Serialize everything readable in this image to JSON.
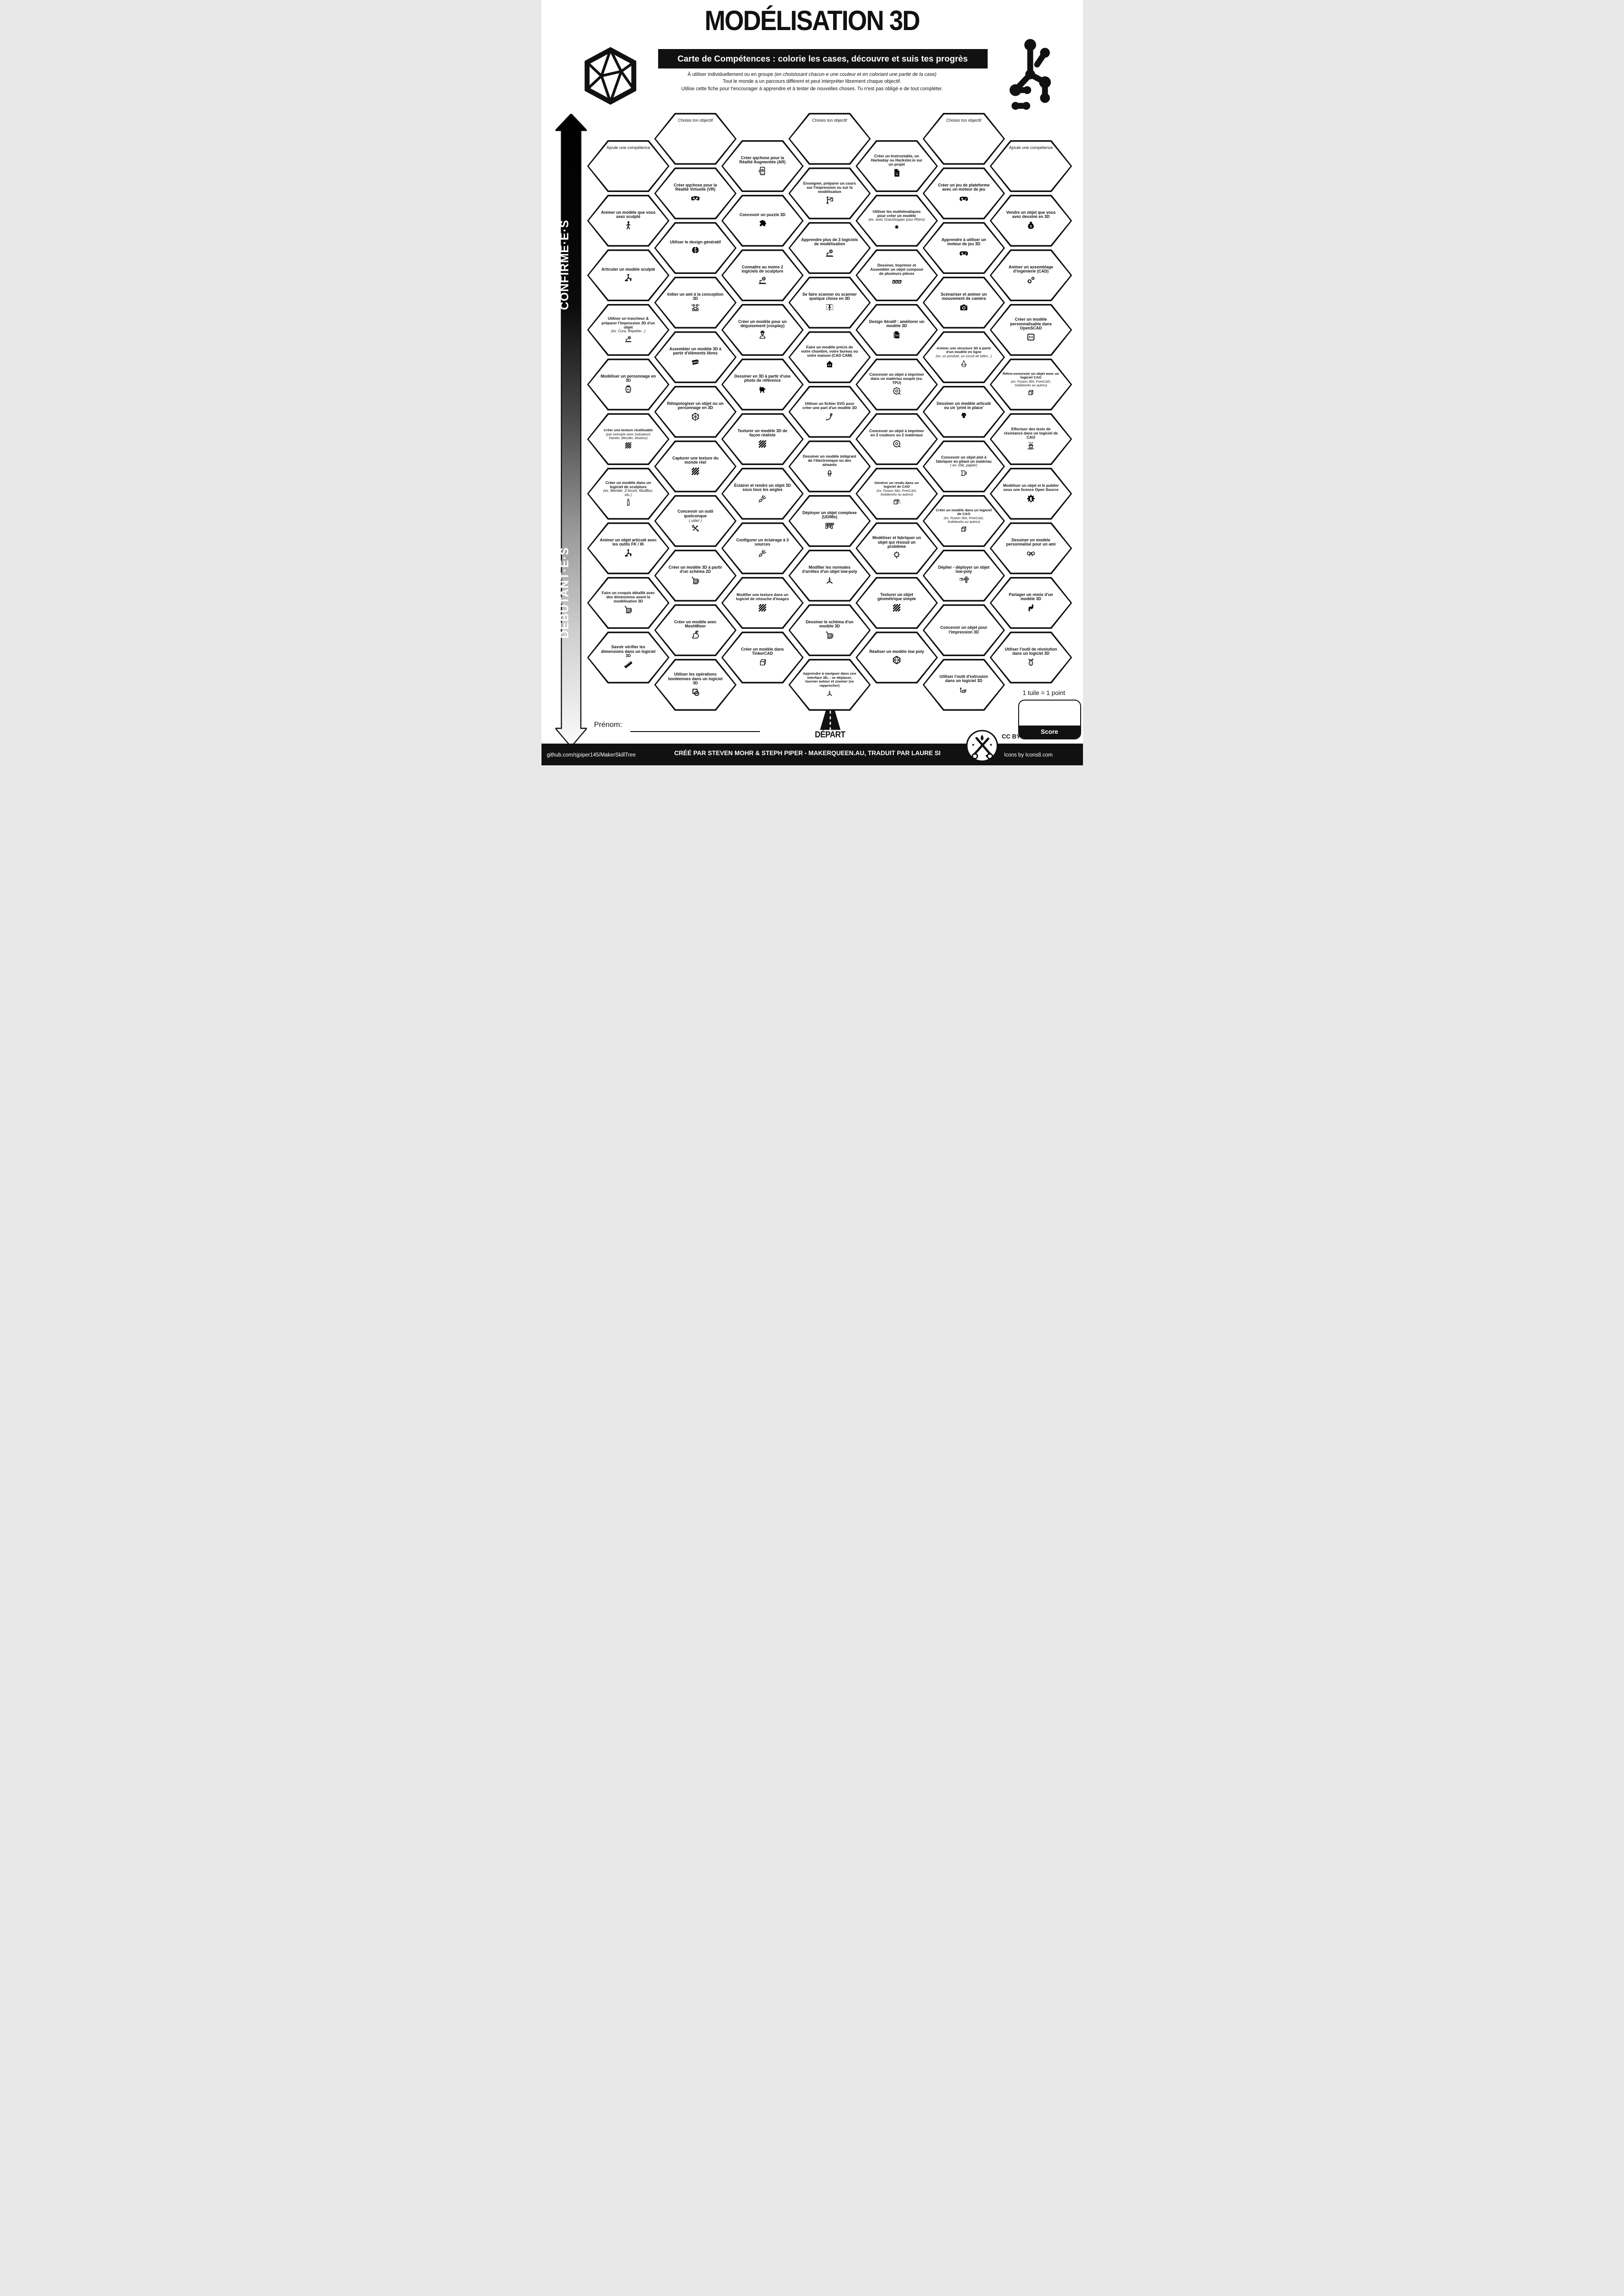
{
  "header": {
    "title": "MODÉLISATION 3D",
    "banner": "Carte de Compétences : colorie les cases, découvre et suis tes progrès",
    "intro_normal": "À utiliser individuellement ou en groupe ",
    "intro_italic": "(en choisissant chacun·e une couleur et en coloriant une partie de la case)",
    "intro_line2": "Tout le monde a un parcours différent et peut interpréter librement chaque objectif.",
    "intro_line3": "Utilise cette fiche pour t'encourager à apprendre et à tester de nouvelles choses. Tu n'est pas obligé·e de tout compléter."
  },
  "axis": {
    "advanced": "CONFIRMÉ·E·S",
    "beginner": "DÉBUTANT·E·S"
  },
  "start": {
    "label": "DÉPART"
  },
  "name_field": {
    "label": "Prénom:"
  },
  "score": {
    "hint": "1 tuile = 1 point",
    "label": "Score"
  },
  "footer": {
    "github": "github.com/sjpiper145/MakerSkillTree",
    "credit": "CRÉÉ PAR STEVEN MOHR & STEPH PIPER - MAKERQUEEN.AU, TRADUIT PAR LAURE SI",
    "license": "CC BY- NC - SA 4.0",
    "icons_credit": "Icons by Icons8.com"
  },
  "hexes": [
    {
      "col": 2,
      "row": 1,
      "label": "Choisis ton objectif",
      "icon": null,
      "label_top": true
    },
    {
      "col": 4,
      "row": 1,
      "label": "Choisis ton objectif",
      "icon": null,
      "label_top": true
    },
    {
      "col": 6,
      "row": 1,
      "label": "Choisis ton objectif",
      "icon": null,
      "label_top": true
    },
    {
      "col": 1,
      "row": 2,
      "label": "Ajoute une compétence",
      "icon": null,
      "label_top": true
    },
    {
      "col": 7,
      "row": 2,
      "label": "Ajoute une compétence",
      "icon": null,
      "label_top": true
    },
    {
      "col": 3,
      "row": 2,
      "label": "Créer qqchose pour la Réalité Augmentée (AR)",
      "icon": "ar"
    },
    {
      "col": 5,
      "row": 2,
      "label": "Créer un Instructable, un Hackaday ou Hackster.io sur un projet",
      "icon": "docsmile"
    },
    {
      "col": 2,
      "row": 3,
      "label": "Créer qqchose pour la Réalité Virtuelle (VR)",
      "icon": "vr"
    },
    {
      "col": 4,
      "row": 3,
      "label": "Enseigner, préparer un cours sur l'impression ou sur la modélisation",
      "icon": "teacher"
    },
    {
      "col": 6,
      "row": 3,
      "label": "Créer un jeu de plateforme avec un moteur de jeu",
      "icon": "gamepad"
    },
    {
      "col": 1,
      "row": 4,
      "label": "Animer un modèle que vous avez sculpté",
      "icon": "walk"
    },
    {
      "col": 3,
      "row": 4,
      "label": "Concevoir un puzzle 3D",
      "icon": "puzzle"
    },
    {
      "col": 5,
      "row": 4,
      "label": "Utiliser les mathématiques pour créer un modèle",
      "sub": "(ex. avec Grasshopper pour Rhino)",
      "icon": "snowflake"
    },
    {
      "col": 7,
      "row": 4,
      "label": "Vendre un objet que vous avez dessiné en 3D",
      "icon": "moneybag"
    },
    {
      "col": 2,
      "row": 5,
      "label": "Utiliser le design génératif",
      "icon": "brain"
    },
    {
      "col": 4,
      "row": 5,
      "label": "Apprendre plus de 3 logiciels de modélisation",
      "icon": "laptopGear"
    },
    {
      "col": 6,
      "row": 5,
      "label": "Apprendre à utiliser un moteur de jeu 3D",
      "icon": "gamepad"
    },
    {
      "col": 1,
      "row": 6,
      "label": "Articuler un modèle sculpté",
      "icon": "armature"
    },
    {
      "col": 3,
      "row": 6,
      "label": "Connaître au moins 2 logiciels de sculpture",
      "icon": "laptopGear"
    },
    {
      "col": 5,
      "row": 6,
      "label": "Dessiner, Imprimer et Assembler un objet composé de plusieurs pièces",
      "icon": "cubes"
    },
    {
      "col": 7,
      "row": 6,
      "label": "Animer un assemblage d'ingénierie (CAD)",
      "icon": "gears"
    },
    {
      "col": 2,
      "row": 7,
      "label": "Initier un ami à la conception 3D",
      "icon": "friends"
    },
    {
      "col": 4,
      "row": 7,
      "label": "Se faire scanner ou scanner quelque chose en 3D",
      "icon": "scan"
    },
    {
      "col": 6,
      "row": 7,
      "label": "Scénariser et animer un mouvement de caméra",
      "icon": "camera"
    },
    {
      "col": 1,
      "row": 8,
      "label": "Utiliser un trancheur & préparer l'impression 3D d'un objet",
      "sub": "(ex. Cura, Repetier...)",
      "icon": "laptopGear"
    },
    {
      "col": 3,
      "row": 8,
      "label": "Créer un modèle pour un déguisement (cosplay)",
      "icon": "cosplay"
    },
    {
      "col": 5,
      "row": 8,
      "label": "Design itératif : améliorer un modèle 3D",
      "icon": "v2"
    },
    {
      "col": 7,
      "row": 8,
      "label": "Créer un modèle personnalisable dans OpenSCAD",
      "icon": "code"
    },
    {
      "col": 2,
      "row": 9,
      "label": "Assembler un modèle 3D à partir d'éléments libres",
      "icon": "free"
    },
    {
      "col": 4,
      "row": 9,
      "label": "Faire un modèle précis de votre chambre, votre bureau ou votre maison (CAD CAM)",
      "icon": "house"
    },
    {
      "col": 6,
      "row": 9,
      "label": "Animer une structure 3D à partir d'un modèle en ligne",
      "sub": "(ex. un pendule, un circuit de billes...)",
      "icon": "pendulum"
    },
    {
      "col": 1,
      "row": 10,
      "label": "Modéliser un personnage en 3D",
      "icon": "face"
    },
    {
      "col": 3,
      "row": 10,
      "label": "Dessiner en 3D à partir d'une photo de référence",
      "icon": "dog"
    },
    {
      "col": 5,
      "row": 10,
      "label": "Concevoir un objet à imprimer dans un matériau souple (ex. TPU)",
      "icon": "spool"
    },
    {
      "col": 7,
      "row": 10,
      "label": "Rétro-concevoir un objet avec un logiciel CAO",
      "sub": "(ex. Fusion 360, FreeCAD, Solidworks ou autres)",
      "icon": "cubeDotted"
    },
    {
      "col": 2,
      "row": 11,
      "label": "Rétopologiser un objet ou un personnage en 3D",
      "icon": "wirehex"
    },
    {
      "col": 4,
      "row": 11,
      "label": "Utiliser un fichier SVG pour créer une part d'un modèle 3D",
      "icon": "pen"
    },
    {
      "col": 6,
      "row": 11,
      "label": "Dessiner un modèle articulé ou un 'print in place'",
      "icon": "dragon"
    },
    {
      "col": 1,
      "row": 12,
      "label": "Créer une texture réutilisable",
      "sub": "(par exemple avec Substance Painter, Blender, Muxbox)",
      "icon": "stripes"
    },
    {
      "col": 3,
      "row": 12,
      "label": "Texturer un modèle 3D de façon réaliste",
      "icon": "stripes"
    },
    {
      "col": 5,
      "row": 12,
      "label": "Concevoir un objet à imprimer en 2 couleurs ou 2 matériaux",
      "icon": "spool"
    },
    {
      "col": 7,
      "row": 12,
      "label": "Effectuer des tests de résistance dans un logiciel de CAO",
      "icon": "press"
    },
    {
      "col": 2,
      "row": 13,
      "label": "Capturer une texture du monde réel",
      "icon": "stripes"
    },
    {
      "col": 4,
      "row": 13,
      "label": "Dessiner un modèle intégrant de l'électronique ou des aimants",
      "icon": "led"
    },
    {
      "col": 6,
      "row": 13,
      "label": "Concevoir un objet plat à fabriquer en pliant un matériau",
      "sub": "( ex. tôle, papier)",
      "icon": "paperfold"
    },
    {
      "col": 1,
      "row": 14,
      "label": "Créer un modèle dans un logiciel de sculpture",
      "sub": "(ex. Blender, Z-brush, MudBox, etc.)",
      "icon": "statue"
    },
    {
      "col": 3,
      "row": 14,
      "label": "Éclairer et rendre un objet 3D sous tous les angles",
      "icon": "spotlight"
    },
    {
      "col": 5,
      "row": 14,
      "label": "Générer un rendu dans un logiciel de CAD",
      "sub": "(ex. Fusion 360, FreeCAD, Solidworks ou autres)",
      "icon": "cubeSparkle"
    },
    {
      "col": 7,
      "row": 14,
      "label": "Modéliser un objet et le publier sous une licence Open Source",
      "icon": "osgear"
    },
    {
      "col": 2,
      "row": 15,
      "label": "Concevoir un outil quelconque",
      "sub": "( utile! )",
      "icon": "tools"
    },
    {
      "col": 4,
      "row": 15,
      "label": "Déployer un objet complexe (UDIMs)",
      "icon": "udims"
    },
    {
      "col": 6,
      "row": 15,
      "label": "Créer un modèle dans un logiciel de CAO",
      "sub": "(ex. Fusion 360, FreeCAD, Solidworks ou autres)",
      "icon": "cubeDotted"
    },
    {
      "col": 1,
      "row": 16,
      "label": "Animer un objet articulé avec les outils FK / IK",
      "icon": "armature"
    },
    {
      "col": 3,
      "row": 16,
      "label": "Configurer un éclairage à 3 sources",
      "icon": "spotlight"
    },
    {
      "col": 5,
      "row": 16,
      "label": "Modéliser et fabriquer un objet qui résoud un problème",
      "icon": "bulb"
    },
    {
      "col": 7,
      "row": 16,
      "label": "Dessiner un modèle personnalisé pour un ami",
      "icon": "bow"
    },
    {
      "col": 2,
      "row": 17,
      "label": "Créer un modèle 3D à partir d'un schéma 2D",
      "icon": "sketch"
    },
    {
      "col": 4,
      "row": 17,
      "label": "Modifier les normales d'arrêtes d'un objet low-poly",
      "icon": "axes"
    },
    {
      "col": 6,
      "row": 17,
      "label": "Déplier - déployer un objet low-poly",
      "icon": "unfold"
    },
    {
      "col": 1,
      "row": 18,
      "label": "Faire un croquis détaillé avec des dimensions avant la modélisation 3D",
      "icon": "sketch"
    },
    {
      "col": 3,
      "row": 18,
      "label": "Modifier une texture dans un logiciel de retouche d'images",
      "icon": "stripes"
    },
    {
      "col": 5,
      "row": 18,
      "label": "Texturer un objet géométrique simple",
      "icon": "stripes"
    },
    {
      "col": 7,
      "row": 18,
      "label": "Partager un remix d'un modèle 3D",
      "icon": "remix"
    },
    {
      "col": 2,
      "row": 19,
      "label": "Créer un modèle avec MeshMixer",
      "icon": "rabbit"
    },
    {
      "col": 4,
      "row": 19,
      "label": "Dessiner le schéma d'un modèle 3D",
      "icon": "sketch"
    },
    {
      "col": 6,
      "row": 19,
      "label": "Concevoir un objet pour  l'impression 3D",
      "icon": null
    },
    {
      "col": 1,
      "row": 20,
      "label": "Savoir vérifier les dimensions dans un logiciel 3D",
      "icon": "ruler"
    },
    {
      "col": 3,
      "row": 20,
      "label": "Créer un modèle dans TinkerCAD",
      "icon": "tinkercad"
    },
    {
      "col": 5,
      "row": 20,
      "label": "Réaliser un modèle low poly",
      "icon": "lowpoly"
    },
    {
      "col": 7,
      "row": 20,
      "label": "Utiliser l'outil de révolution dans un logiciel 3D",
      "icon": "vase"
    },
    {
      "col": 2,
      "row": 21,
      "label": "Utiliser les opérations booléennes dans un logiciel 3D",
      "icon": "boolean"
    },
    {
      "col": 4,
      "row": 21,
      "label": "Apprendre à naviguer dans une interface 3D, : se déplacer, tourner autour et zoomer (se rapprocher)",
      "icon": "axes"
    },
    {
      "col": 6,
      "row": 21,
      "label": "Utiliser l'outil d'extrusion dans un logiciel 3D",
      "icon": "extrude"
    }
  ]
}
